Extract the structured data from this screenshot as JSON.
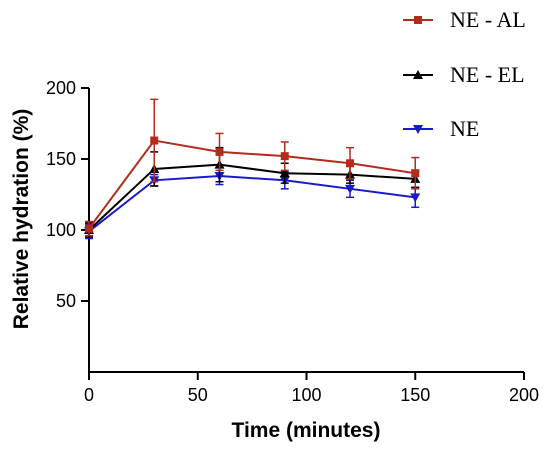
{
  "chart_data": {
    "type": "line",
    "xlabel": "Time (minutes)",
    "ylabel": "Relative hydration (%)",
    "xlim": [
      0,
      200
    ],
    "ylim": [
      0,
      200
    ],
    "xticks": [
      "0",
      "50",
      "100",
      "150",
      "200"
    ],
    "yticks": [
      "50",
      "100",
      "150",
      "200"
    ],
    "grid": false,
    "legend_position": "top-right",
    "x": [
      0,
      30,
      60,
      90,
      120,
      150
    ],
    "series": [
      {
        "name": "NE - AL",
        "color": "#b22c1c",
        "marker": "square",
        "values": [
          101,
          163,
          155,
          152,
          147,
          140
        ],
        "error": [
          5,
          29,
          13,
          10,
          11,
          11
        ]
      },
      {
        "name": "NE - EL",
        "color": "#000000",
        "marker": "triangle-up",
        "values": [
          100,
          143,
          146,
          140,
          139,
          136
        ],
        "error": [
          5,
          12,
          12,
          7,
          6,
          6
        ]
      },
      {
        "name": "NE",
        "color": "#1a1acc",
        "marker": "triangle-down",
        "values": [
          99,
          135,
          138,
          135,
          129,
          123
        ],
        "error": [
          5,
          4,
          6,
          6,
          6,
          7
        ]
      }
    ]
  }
}
